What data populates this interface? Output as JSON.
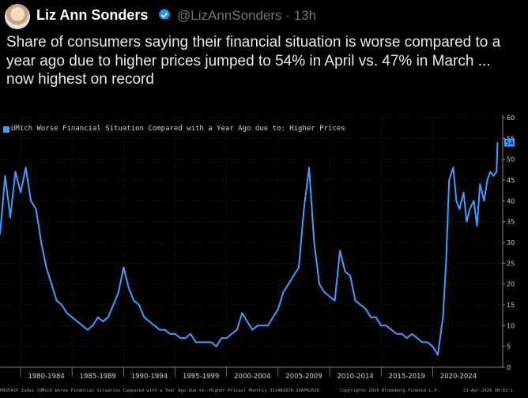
{
  "tweet": {
    "author_name": "Liz Ann Sonders",
    "handle": "@LizAnnSonders",
    "separator": "·",
    "time": "13h",
    "text": "Share of consumers saying their financial situation is worse compared to a year ago due to higher prices jumped to 54% in April vs. 47% in March ... now highest on record",
    "icons": {
      "avatar": "avatar-photo",
      "verified": "verified-badge-icon"
    },
    "colors": {
      "background": "#000000",
      "text": "#e7e9ea",
      "muted": "#71767b",
      "verified": "#1d9bf0"
    }
  },
  "chart_data": {
    "type": "line",
    "title": "UMich Worse Financial Situation Compared with a Year Ago due to: Higher Prices",
    "series": [
      {
        "name": "UMich Worse Financial Situation Compared with a Year Ago due to: Higher Prices",
        "color": "#3ba0ff",
        "x": [
          1978.0,
          1978.5,
          1979.0,
          1979.5,
          1980.0,
          1980.5,
          1981.0,
          1981.5,
          1982.0,
          1982.5,
          1983.0,
          1983.5,
          1984.0,
          1984.5,
          1985.0,
          1985.5,
          1986.0,
          1986.5,
          1987.0,
          1987.5,
          1988.0,
          1988.5,
          1989.0,
          1989.5,
          1990.0,
          1990.5,
          1991.0,
          1991.5,
          1992.0,
          1992.5,
          1993.0,
          1993.5,
          1994.0,
          1994.5,
          1995.0,
          1995.5,
          1996.0,
          1996.5,
          1997.0,
          1997.5,
          1998.0,
          1998.5,
          1999.0,
          1999.5,
          2000.0,
          2000.5,
          2001.0,
          2001.5,
          2002.0,
          2002.5,
          2003.0,
          2003.5,
          2004.0,
          2004.5,
          2005.0,
          2005.5,
          2006.0,
          2006.5,
          2007.0,
          2007.5,
          2008.0,
          2008.5,
          2009.0,
          2009.5,
          2010.0,
          2010.5,
          2011.0,
          2011.5,
          2012.0,
          2012.5,
          2013.0,
          2013.5,
          2014.0,
          2014.5,
          2015.0,
          2015.5,
          2016.0,
          2016.5,
          2017.0,
          2017.5,
          2018.0,
          2018.5,
          2019.0,
          2019.5,
          2020.0,
          2020.5,
          2021.0,
          2021.3,
          2021.6,
          2022.0,
          2022.3,
          2022.6,
          2023.0,
          2023.3,
          2023.6,
          2024.0,
          2024.3,
          2024.6,
          2025.0,
          2025.3,
          2025.6,
          2025.9,
          2026.2,
          2026.3
        ],
        "values": [
          32,
          46,
          36,
          47,
          42,
          48,
          40,
          38,
          30,
          24,
          20,
          16,
          15,
          13,
          12,
          11,
          10,
          9,
          10,
          12,
          11,
          12,
          15,
          18,
          24,
          19,
          16,
          15,
          12,
          11,
          10,
          9,
          9,
          8,
          8,
          7,
          7,
          8,
          6,
          6,
          6,
          6,
          5,
          7,
          7,
          8,
          9,
          13,
          11,
          9,
          10,
          10,
          10,
          12,
          14,
          18,
          20,
          22,
          24,
          38,
          48,
          30,
          20,
          18,
          17,
          16,
          28,
          23,
          22,
          16,
          15,
          14,
          12,
          12,
          10,
          10,
          9,
          8,
          8,
          7,
          8,
          7,
          6,
          6,
          5,
          3,
          12,
          25,
          45,
          48,
          40,
          38,
          42,
          35,
          38,
          40,
          34,
          44,
          40,
          45,
          47,
          46,
          47,
          54
        ]
      }
    ],
    "x_tick_labels": [
      "1980-1984",
      "1985-1989",
      "1990-1994",
      "1995-1999",
      "2000-2004",
      "2005-2009",
      "2010-2014",
      "2015-2019",
      "2020-2024"
    ],
    "x_tick_ranges": [
      [
        1980,
        1985
      ],
      [
        1985,
        1990
      ],
      [
        1990,
        1995
      ],
      [
        1995,
        2000
      ],
      [
        2000,
        2005
      ],
      [
        2005,
        2010
      ],
      [
        2010,
        2015
      ],
      [
        2015,
        2020
      ],
      [
        2020,
        2025
      ]
    ],
    "xlim": [
      1978.0,
      2026.8
    ],
    "ylim": [
      0,
      60
    ],
    "y_ticks": [
      0,
      5,
      10,
      15,
      20,
      25,
      30,
      35,
      40,
      45,
      50,
      55,
      60
    ],
    "y_axis_side": "right",
    "last_value_label": "54",
    "grid": true,
    "legend": "top-left",
    "footer_left": "PNSFASP Index (UMich Worse Financial Situation Compared with a Year Ago due to: Higher Prices) Monthly 31JAN1978-30APR2026",
    "footer_mid": "Copyright© 2026 Bloomberg Finance L.P.",
    "footer_right": "13-Apr-2026 08:02:1"
  }
}
